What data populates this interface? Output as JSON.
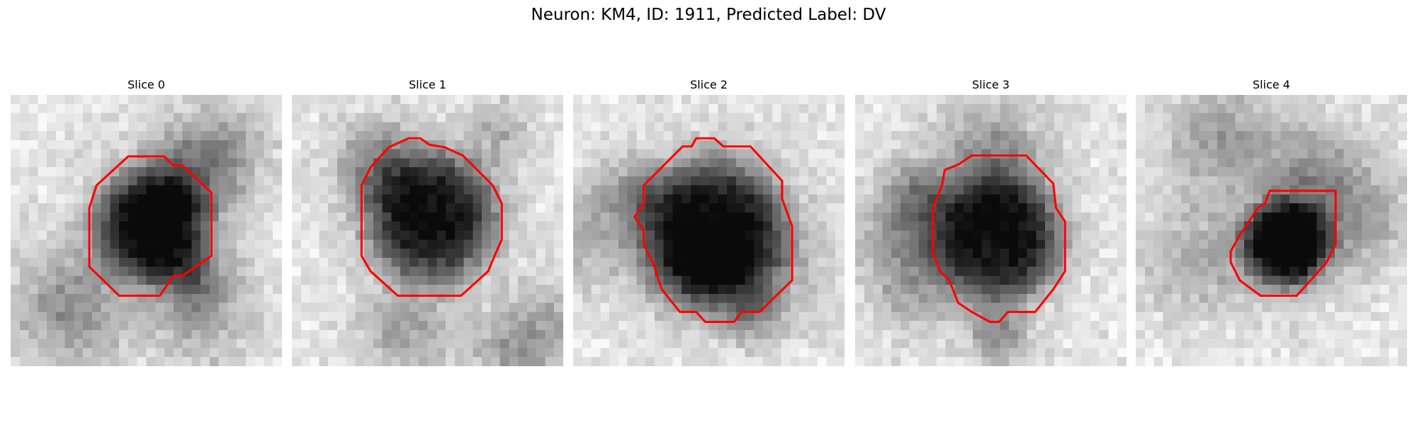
{
  "title": "Neuron: KM4, ID: 1911, Predicted Label: DV",
  "panels": [
    {
      "title": "Slice 0"
    },
    {
      "title": "Slice 1"
    },
    {
      "title": "Slice 2"
    },
    {
      "title": "Slice 3"
    },
    {
      "title": "Slice 4"
    }
  ]
}
